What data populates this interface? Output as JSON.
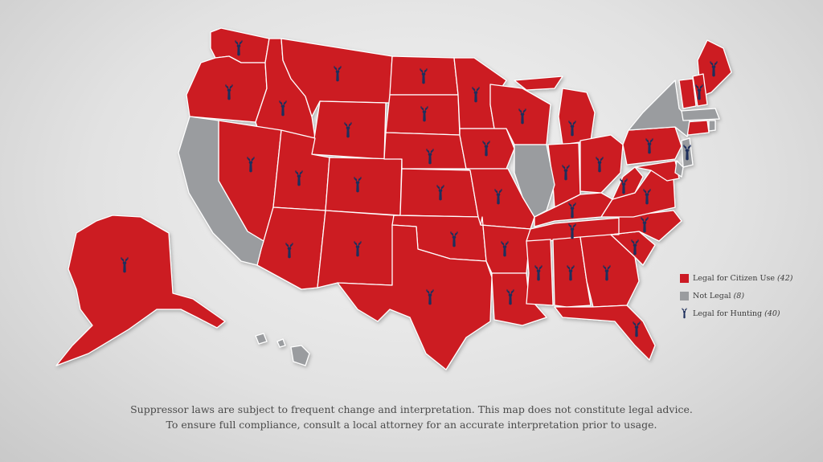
{
  "colors": {
    "legal": "#cc1a24",
    "not_legal": "#9a9c9f",
    "hunting": "#1e2f5c"
  },
  "legend": {
    "items": [
      {
        "label": "Legal for Citizen Use",
        "count": "(42)"
      },
      {
        "label": "Not Legal",
        "count": "(8)"
      },
      {
        "label": "Legal for Hunting",
        "count": "(40)"
      }
    ]
  },
  "disclaimer": {
    "line1": "Suppressor laws are subject to frequent change and interpretation. This map does not constitute legal advice.",
    "line2": "To ensure full compliance, consult a local attorney for an accurate interpretation prior to usage."
  },
  "states": {
    "WA": {
      "status": "legal",
      "hunting": true
    },
    "OR": {
      "status": "legal",
      "hunting": true
    },
    "ID": {
      "status": "legal",
      "hunting": true
    },
    "MT": {
      "status": "legal",
      "hunting": true
    },
    "WY": {
      "status": "legal",
      "hunting": true
    },
    "NV": {
      "status": "legal",
      "hunting": true
    },
    "UT": {
      "status": "legal",
      "hunting": true
    },
    "CO": {
      "status": "legal",
      "hunting": true
    },
    "AZ": {
      "status": "legal",
      "hunting": true
    },
    "NM": {
      "status": "legal",
      "hunting": true
    },
    "ND": {
      "status": "legal",
      "hunting": true
    },
    "SD": {
      "status": "legal",
      "hunting": true
    },
    "NE": {
      "status": "legal",
      "hunting": true
    },
    "KS": {
      "status": "legal",
      "hunting": true
    },
    "OK": {
      "status": "legal",
      "hunting": true
    },
    "TX": {
      "status": "legal",
      "hunting": true
    },
    "MN": {
      "status": "legal",
      "hunting": true
    },
    "IA": {
      "status": "legal",
      "hunting": true
    },
    "MO": {
      "status": "legal",
      "hunting": true
    },
    "AR": {
      "status": "legal",
      "hunting": true
    },
    "LA": {
      "status": "legal",
      "hunting": true
    },
    "WI": {
      "status": "legal",
      "hunting": true
    },
    "MI": {
      "status": "legal",
      "hunting": true
    },
    "IN": {
      "status": "legal",
      "hunting": true
    },
    "OH": {
      "status": "legal",
      "hunting": true
    },
    "KY": {
      "status": "legal",
      "hunting": true
    },
    "TN": {
      "status": "legal",
      "hunting": true
    },
    "MS": {
      "status": "legal",
      "hunting": true
    },
    "AL": {
      "status": "legal",
      "hunting": true
    },
    "GA": {
      "status": "legal",
      "hunting": true
    },
    "FL": {
      "status": "legal",
      "hunting": true
    },
    "SC": {
      "status": "legal",
      "hunting": true
    },
    "NC": {
      "status": "legal",
      "hunting": true
    },
    "VA": {
      "status": "legal",
      "hunting": true
    },
    "WV": {
      "status": "legal",
      "hunting": true
    },
    "PA": {
      "status": "legal",
      "hunting": true
    },
    "MD": {
      "status": "legal",
      "hunting": false
    },
    "ME": {
      "status": "legal",
      "hunting": true
    },
    "NH": {
      "status": "legal",
      "hunting": true
    },
    "VT": {
      "status": "legal",
      "hunting": false
    },
    "CT": {
      "status": "legal",
      "hunting": false
    },
    "AK": {
      "status": "legal",
      "hunting": true
    },
    "CA": {
      "status": "not_legal",
      "hunting": false
    },
    "IL": {
      "status": "not_legal",
      "hunting": false
    },
    "NY": {
      "status": "not_legal",
      "hunting": false
    },
    "NJ": {
      "status": "not_legal",
      "hunting": true
    },
    "MA": {
      "status": "not_legal",
      "hunting": false
    },
    "RI": {
      "status": "not_legal",
      "hunting": false
    },
    "DE": {
      "status": "not_legal",
      "hunting": false
    },
    "HI": {
      "status": "not_legal",
      "hunting": false
    }
  }
}
